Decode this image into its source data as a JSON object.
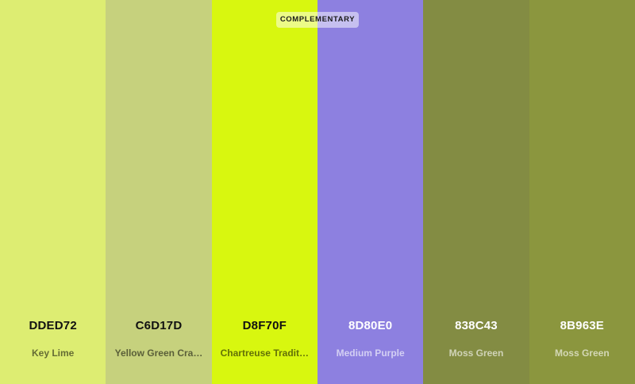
{
  "badge": {
    "label": "COMPLEMENTARY"
  },
  "swatches": [
    {
      "hex": "DDED72",
      "name": "Key Lime",
      "color": "#DDED72",
      "text_tone": "dark"
    },
    {
      "hex": "C6D17D",
      "name": "Yellow Green Crayola",
      "display_name": "Yellow Green Cra…",
      "color": "#C6D17D",
      "text_tone": "dark"
    },
    {
      "hex": "D8F70F",
      "name": "Chartreuse Traditional",
      "display_name": "Chartreuse Tradit…",
      "color": "#D8F70F",
      "text_tone": "dark"
    },
    {
      "hex": "8D80E0",
      "name": "Medium Purple",
      "color": "#8D80E0",
      "text_tone": "light"
    },
    {
      "hex": "838C43",
      "name": "Moss Green",
      "color": "#838C43",
      "text_tone": "light"
    },
    {
      "hex": "8B963E",
      "name": "Moss Green",
      "color": "#8B963E",
      "text_tone": "light"
    }
  ]
}
